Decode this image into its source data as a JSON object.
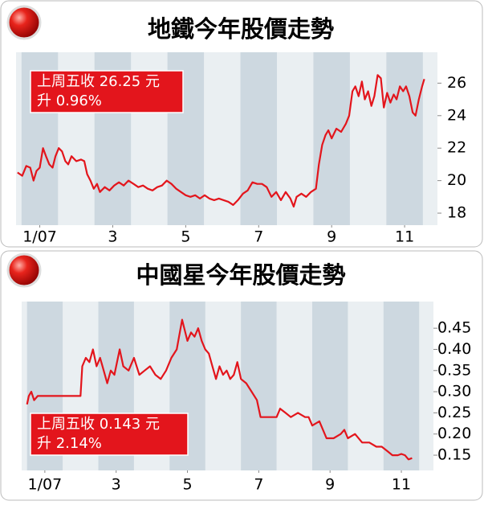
{
  "chart_data": [
    {
      "type": "line",
      "title": "地鐵今年股價走勢",
      "color": "#e3151c",
      "annotations": [
        "上周五收 26.25 元",
        "升 0.96%"
      ],
      "x": [
        0.89,
        1.02,
        1.13,
        1.24,
        1.33,
        1.41,
        1.5,
        1.59,
        1.67,
        1.76,
        1.85,
        1.93,
        2.02,
        2.11,
        2.2,
        2.28,
        2.37,
        2.5,
        2.63,
        2.72,
        2.8,
        2.89,
        2.98,
        3.07,
        3.15,
        3.28,
        3.41,
        3.54,
        3.67,
        3.8,
        3.93,
        4.07,
        4.2,
        4.33,
        4.46,
        4.59,
        4.72,
        4.85,
        4.98,
        5.11,
        5.24,
        5.37,
        5.5,
        5.63,
        5.76,
        5.89,
        6.02,
        6.15,
        6.28,
        6.41,
        6.54,
        6.67,
        6.8,
        6.93,
        7.07,
        7.2,
        7.33,
        7.46,
        7.59,
        7.72,
        7.85,
        7.98,
        8.11,
        8.24,
        8.37,
        8.46,
        8.54,
        8.67,
        8.8,
        8.93,
        9.07,
        9.15,
        9.24,
        9.33,
        9.41,
        9.5,
        9.63,
        9.76,
        9.89,
        9.98,
        10.07,
        10.15,
        10.24,
        10.33,
        10.41,
        10.5,
        10.59,
        10.67,
        10.76,
        10.85,
        10.93,
        11.02,
        11.11,
        11.2,
        11.28,
        11.37,
        11.46,
        11.54,
        11.63,
        11.72,
        11.8,
        11.89,
        11.98,
        12.04
      ],
      "values": [
        20.5,
        20.3,
        20.9,
        20.8,
        20.0,
        20.6,
        20.8,
        22.0,
        21.5,
        21.0,
        20.8,
        21.5,
        22.0,
        21.8,
        21.2,
        21.0,
        21.5,
        21.2,
        21.3,
        21.2,
        20.4,
        20.0,
        19.5,
        19.8,
        19.3,
        19.6,
        19.4,
        19.7,
        19.9,
        19.7,
        20.0,
        19.8,
        19.6,
        19.7,
        19.5,
        19.4,
        19.6,
        19.7,
        20.0,
        19.8,
        19.5,
        19.3,
        19.1,
        19.0,
        19.1,
        18.9,
        19.1,
        18.9,
        18.8,
        18.9,
        18.8,
        18.7,
        18.5,
        18.8,
        19.2,
        19.4,
        19.9,
        19.8,
        19.8,
        19.6,
        19.0,
        19.3,
        18.8,
        19.3,
        18.9,
        18.4,
        19.0,
        19.2,
        19.0,
        19.3,
        19.5,
        21.0,
        22.2,
        22.8,
        23.1,
        22.6,
        23.2,
        23.0,
        23.5,
        24.0,
        25.5,
        25.8,
        25.2,
        26.1,
        25.0,
        25.5,
        24.6,
        25.2,
        26.5,
        26.3,
        24.5,
        25.4,
        24.8,
        25.3,
        25.0,
        25.8,
        25.5,
        25.8,
        25.2,
        24.2,
        24.0,
        25.0,
        25.8,
        26.25
      ],
      "xlim": [
        0.85,
        12.4
      ],
      "ylim": [
        17.26,
        27.9
      ],
      "xticks": [
        {
          "value": 1.5,
          "label": "1/07"
        },
        {
          "value": 3.5,
          "label": "3"
        },
        {
          "value": 5.5,
          "label": "5"
        },
        {
          "value": 7.5,
          "label": "7"
        },
        {
          "value": 9.5,
          "label": "9"
        },
        {
          "value": 11.5,
          "label": "11"
        }
      ],
      "yticks": [
        18,
        20,
        22,
        24,
        26
      ]
    },
    {
      "type": "line",
      "title": "中國星今年股價走勢",
      "color": "#e3151c",
      "annotations": [
        "上周五收 0.143 元",
        "升 2.14%"
      ],
      "x": [
        1.0,
        1.05,
        1.12,
        1.2,
        1.3,
        1.45,
        1.7,
        2.0,
        2.3,
        2.5,
        2.55,
        2.65,
        2.75,
        2.85,
        2.95,
        3.05,
        3.15,
        3.25,
        3.35,
        3.45,
        3.6,
        3.7,
        3.85,
        4.0,
        4.15,
        4.3,
        4.45,
        4.6,
        4.75,
        4.9,
        5.05,
        5.2,
        5.35,
        5.5,
        5.6,
        5.7,
        5.8,
        5.9,
        6.0,
        6.1,
        6.2,
        6.3,
        6.4,
        6.5,
        6.6,
        6.7,
        6.8,
        6.9,
        7.0,
        7.15,
        7.3,
        7.45,
        7.55,
        7.65,
        7.75,
        7.85,
        8.0,
        8.1,
        8.25,
        8.4,
        8.6,
        8.8,
        8.9,
        9.0,
        9.2,
        9.4,
        9.6,
        9.8,
        9.9,
        10.0,
        10.2,
        10.4,
        10.6,
        10.8,
        10.95,
        11.1,
        11.25,
        11.4,
        11.5,
        11.6,
        11.7,
        11.8
      ],
      "values": [
        0.27,
        0.29,
        0.3,
        0.28,
        0.29,
        0.29,
        0.29,
        0.29,
        0.29,
        0.29,
        0.36,
        0.38,
        0.37,
        0.4,
        0.36,
        0.38,
        0.35,
        0.32,
        0.35,
        0.34,
        0.4,
        0.36,
        0.35,
        0.38,
        0.34,
        0.35,
        0.36,
        0.34,
        0.33,
        0.35,
        0.38,
        0.4,
        0.47,
        0.42,
        0.44,
        0.43,
        0.45,
        0.42,
        0.4,
        0.39,
        0.36,
        0.33,
        0.36,
        0.34,
        0.35,
        0.33,
        0.34,
        0.37,
        0.33,
        0.32,
        0.3,
        0.28,
        0.24,
        0.24,
        0.24,
        0.24,
        0.24,
        0.26,
        0.25,
        0.24,
        0.25,
        0.24,
        0.24,
        0.22,
        0.23,
        0.19,
        0.19,
        0.2,
        0.21,
        0.19,
        0.2,
        0.18,
        0.18,
        0.17,
        0.17,
        0.16,
        0.15,
        0.15,
        0.153,
        0.15,
        0.14,
        0.143
      ],
      "xlim": [
        0.85,
        12.4
      ],
      "ylim": [
        0.114,
        0.513
      ],
      "xticks": [
        {
          "value": 1.5,
          "label": "1/07"
        },
        {
          "value": 3.5,
          "label": "3"
        },
        {
          "value": 5.5,
          "label": "5"
        },
        {
          "value": 7.5,
          "label": "7"
        },
        {
          "value": 9.5,
          "label": "9"
        },
        {
          "value": 11.5,
          "label": "11"
        }
      ],
      "yticks": [
        0.45,
        {
          "value": 0.4,
          "label": "0.40"
        },
        0.35,
        {
          "value": 0.3,
          "label": "0.30"
        },
        0.25,
        {
          "value": 0.2,
          "label": "0.20"
        },
        0.15
      ]
    }
  ]
}
